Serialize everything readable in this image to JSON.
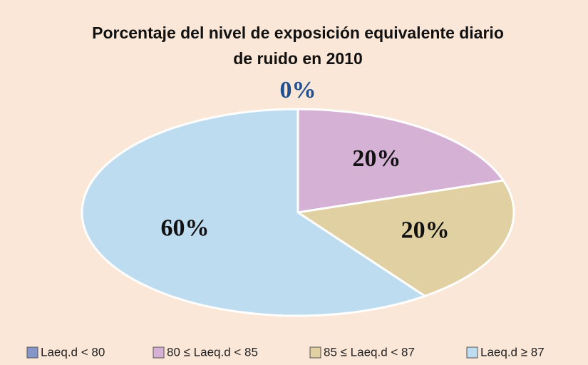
{
  "chart_data": {
    "type": "pie",
    "title": [
      "Porcentaje del nivel de exposición equivalente diario",
      "de ruido en 2010"
    ],
    "categories": [
      "Laeq.d < 80",
      "80 ≤ Laeq.d < 85",
      "85 ≤ Laeq.d < 87",
      "Laeq.d ≥ 87"
    ],
    "values": [
      0,
      20,
      20,
      60
    ],
    "value_labels": [
      "0%",
      "20%",
      "20%",
      "60%"
    ],
    "colors": [
      "#8497c8",
      "#d6b1d6",
      "#e1d0a2",
      "#bddcef"
    ],
    "legend": "bottom"
  }
}
